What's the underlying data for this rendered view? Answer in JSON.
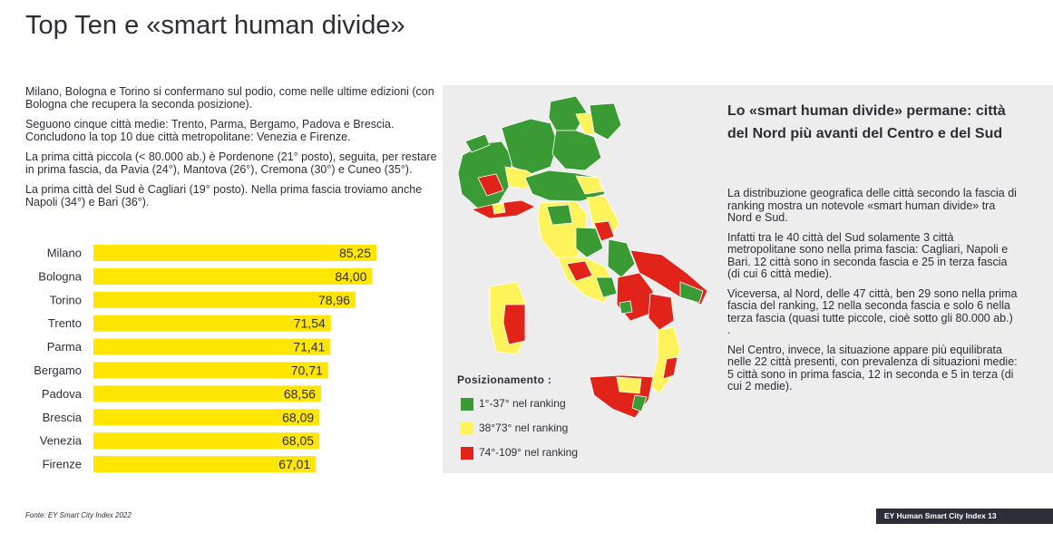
{
  "title": "Top Ten e «smart human divide»",
  "intro": [
    "Milano, Bologna e Torino si confermano sul podio, come nelle ultime edizioni (con Bologna che recupera la seconda posizione).",
    "Seguono cinque città medie: Trento, Parma, Bergamo, Padova e Brescia. Concludono la top 10 due città metropolitane: Venezia e Firenze.",
    "La prima città piccola (< 80.000 ab.) è Pordenone (21° posto), seguita, per restare in prima fascia, da Pavia (24°), Mantova (26°), Cremona (30°) e Cuneo (35°).",
    "La prima città del Sud è Cagliari (19° posto). Nella prima fascia troviamo anche Napoli (34°) e Bari (36°)."
  ],
  "chart_data": {
    "type": "bar",
    "orientation": "horizontal",
    "categories": [
      "Milano",
      "Bologna",
      "Torino",
      "Trento",
      "Parma",
      "Bergamo",
      "Padova",
      "Brescia",
      "Venezia",
      "Firenze"
    ],
    "values": [
      85.25,
      84.0,
      78.96,
      71.54,
      71.41,
      70.71,
      68.56,
      68.09,
      68.05,
      67.01
    ],
    "value_labels": [
      "85,25",
      "84,00",
      "78,96",
      "71,54",
      "71,41",
      "70,71",
      "68,56",
      "68,09",
      "68,05",
      "67,01"
    ],
    "bar_color": "#ffe600",
    "grid": false
  },
  "map": {
    "legend_title": "Posizionamento :",
    "legend": [
      {
        "label": "1°-37° nel ranking",
        "color": "#3a9b34"
      },
      {
        "label": "38°73° nel ranking",
        "color": "#fff35c"
      },
      {
        "label": "74°-109° nel ranking",
        "color": "#e2231a"
      }
    ]
  },
  "sidebar": {
    "heading": "Lo «smart human divide» permane: città del Nord più avanti del Centro e del Sud",
    "paragraphs": [
      "La distribuzione geografica delle città secondo la fascia di ranking mostra un notevole «smart human divide» tra Nord e Sud.",
      "Infatti tra le 40 città del Sud solamente 3 città metropolitane sono nella prima fascia: Cagliari, Napoli e Bari. 12 città sono in seconda fascia e 25 in terza fascia (di cui 6 città medie).",
      "Viceversa, al Nord, delle 47 città, ben 29 sono nella prima fascia del ranking, 12 nella seconda fascia e solo 6 nella terza fascia (quasi tutte piccole, cioè sotto gli 80.000 ab.) .",
      "Nel Centro, invece, la situazione appare più equilibrata nelle 22 città presenti, con prevalenza di situazioni medie: 5 città sono in prima fascia, 12 in seconda e 5 in terza (di cui 2 medie)."
    ]
  },
  "source": "Fonte: EY Smart City Index 2022",
  "footer": {
    "brand": "EY Human Smart City Index",
    "page": "13"
  }
}
